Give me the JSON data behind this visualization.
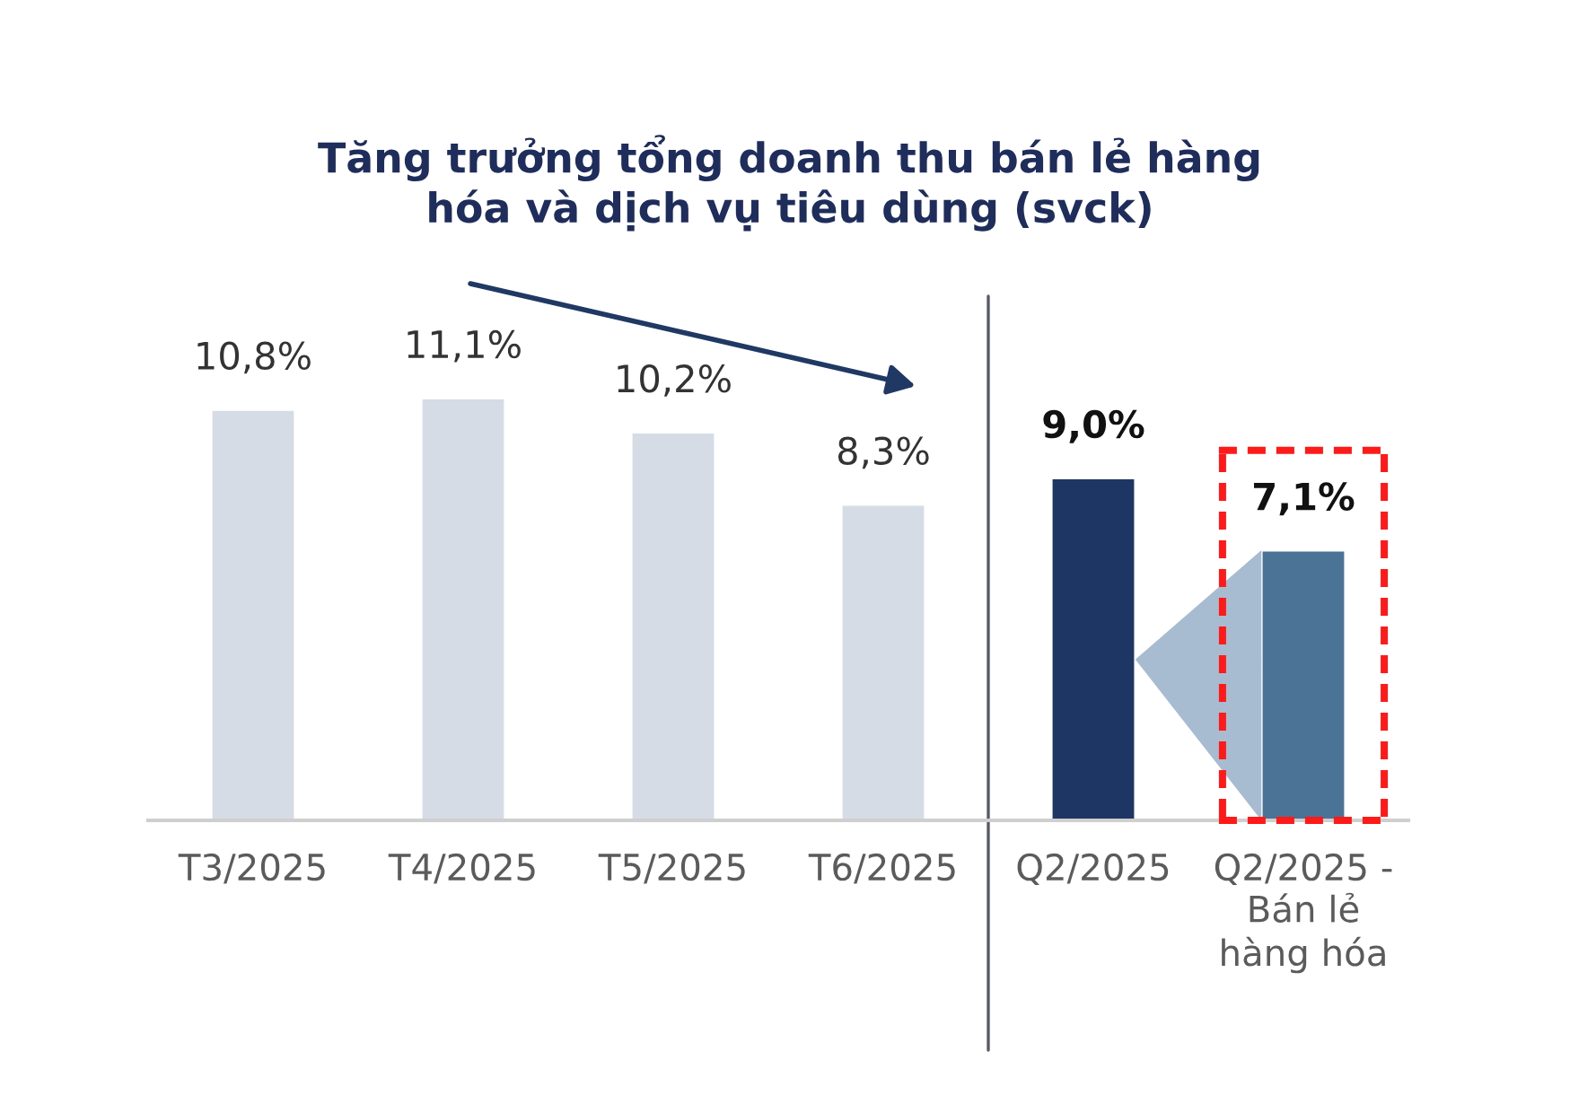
{
  "chart_data": {
    "type": "bar",
    "title": "Tăng trưởng tổng doanh thu bán lẻ hàng\nhóa và dịch vụ tiêu dùng (svck)",
    "categories": [
      "T3/2025",
      "T4/2025",
      "T5/2025",
      "T6/2025",
      "Q2/2025",
      "Q2/2025 -\nBán lẻ\nhàng hóa"
    ],
    "values": [
      10.8,
      11.1,
      10.2,
      8.3,
      9.0,
      7.1
    ],
    "colors": [
      "#d5dce6",
      "#d5dce6",
      "#d5dce6",
      "#d5dce6",
      "#1e3663",
      "#4b7396"
    ],
    "value_labels": [
      "10,8%",
      "11,1%",
      "10,2%",
      "8,3%",
      "9,0%",
      "7,1%"
    ],
    "tick_labels": "x"
  }
}
